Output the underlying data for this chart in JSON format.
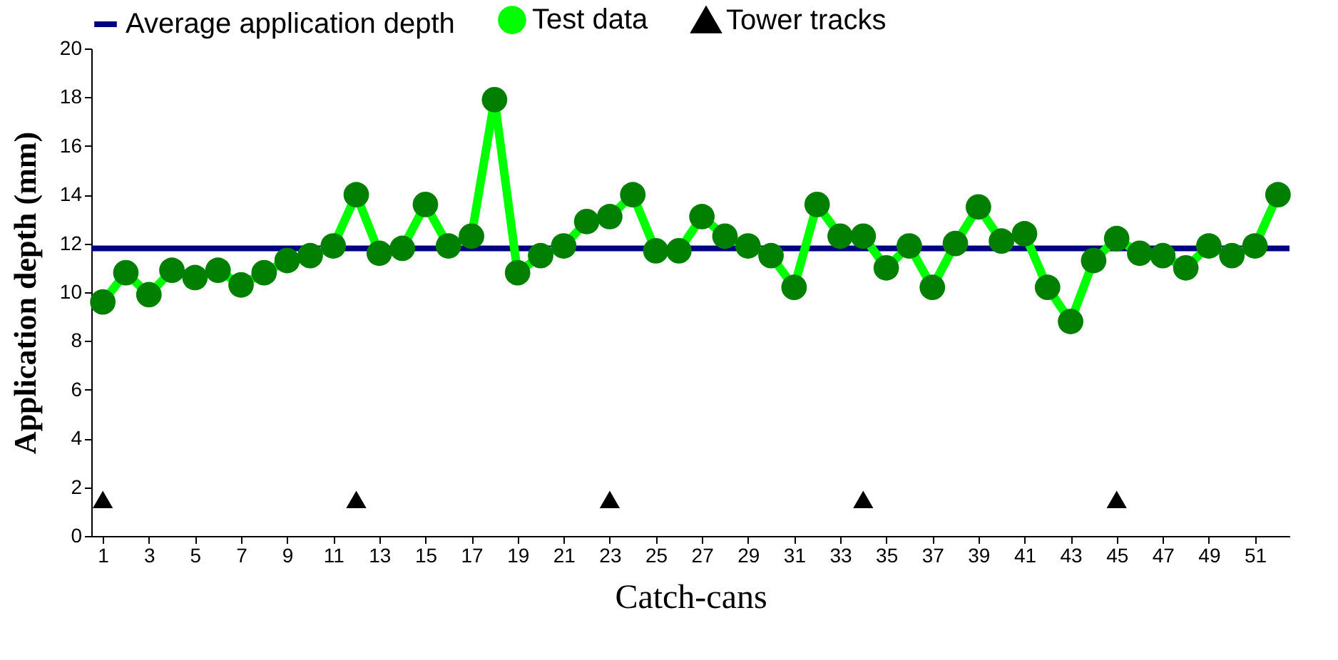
{
  "chart_data": {
    "type": "line",
    "xlabel": "Catch-cans",
    "ylabel": "Application depth (mm)",
    "xlim": [
      0.5,
      52.5
    ],
    "xticks": [
      1,
      3,
      5,
      7,
      9,
      11,
      13,
      15,
      17,
      19,
      21,
      23,
      25,
      27,
      29,
      31,
      33,
      35,
      37,
      39,
      41,
      43,
      45,
      47,
      49,
      51
    ],
    "ylim": [
      0,
      20
    ],
    "yticks": [
      0,
      2,
      4,
      6,
      8,
      10,
      12,
      14,
      16,
      18,
      20
    ],
    "grid": false,
    "legend": "top",
    "series": [
      {
        "name": "Average application depth",
        "color": "#000080",
        "marker": "none",
        "x": [
          0.5,
          52.5
        ],
        "values": [
          11.8,
          11.8
        ]
      },
      {
        "name": "Test data",
        "color": "#00ff00",
        "marker": "circle",
        "x": [
          1,
          2,
          3,
          4,
          5,
          6,
          7,
          8,
          9,
          10,
          11,
          12,
          13,
          14,
          15,
          16,
          17,
          18,
          19,
          20,
          21,
          22,
          23,
          24,
          25,
          26,
          27,
          28,
          29,
          30,
          31,
          32,
          33,
          34,
          35,
          36,
          37,
          38,
          39,
          40,
          41,
          42,
          43,
          44,
          45,
          46,
          47,
          48,
          49,
          50,
          51,
          52
        ],
        "values": [
          9.6,
          10.8,
          9.9,
          10.9,
          10.6,
          10.9,
          10.3,
          10.8,
          11.3,
          11.5,
          11.9,
          14.0,
          11.6,
          11.8,
          13.6,
          11.9,
          12.3,
          17.9,
          10.8,
          11.5,
          11.9,
          12.9,
          13.1,
          14.0,
          11.7,
          11.7,
          13.1,
          12.3,
          11.9,
          11.5,
          10.2,
          13.6,
          12.3,
          12.3,
          11.0,
          11.9,
          10.2,
          12.0,
          13.5,
          12.1,
          12.4,
          10.2,
          8.8,
          11.3,
          12.2,
          11.6,
          11.5,
          11.0,
          11.9,
          11.5,
          11.9,
          14.0
        ]
      },
      {
        "name": "Tower tracks",
        "type": "scatter",
        "color": "#000000",
        "marker": "triangle",
        "x": [
          1,
          12,
          23,
          34,
          45
        ],
        "values": [
          1.5,
          1.5,
          1.5,
          1.5,
          1.5
        ]
      }
    ]
  }
}
